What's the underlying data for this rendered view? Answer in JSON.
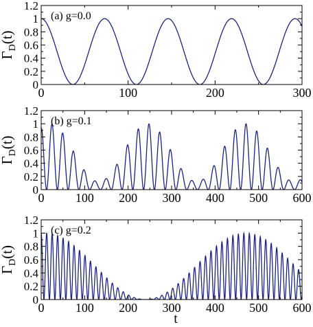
{
  "chart_data": [
    {
      "type": "line",
      "panel_label": "(a) g=0.0",
      "xlabel": "",
      "ylabel": "Γ_D(t)",
      "ylabel_main": "Γ",
      "ylabel_sub": "D",
      "ylabel_tail": "(t)",
      "xlim": [
        0,
        300
      ],
      "ylim": [
        0,
        1.2
      ],
      "x_ticks": [
        0,
        100,
        200,
        300
      ],
      "y_ticks": [
        0,
        0.2,
        0.4,
        0.6,
        0.8,
        1,
        1.2
      ],
      "y_tick_labels": [
        "0",
        "0.2",
        "0.4",
        "0.6",
        "0.8",
        "1",
        "1.2"
      ],
      "series": [
        {
          "color": "#1a237e",
          "formula": "cos^2(pi*t/73)",
          "x": [
            0,
            18,
            36.5,
            55,
            73,
            91,
            109.5,
            128,
            146,
            164,
            182.5,
            201,
            219,
            237,
            255.5,
            274,
            292,
            300
          ],
          "y": [
            1.0,
            0.5,
            0.0,
            0.5,
            1.0,
            0.5,
            0.0,
            0.5,
            1.0,
            0.5,
            0.0,
            0.5,
            1.0,
            0.5,
            0.0,
            0.5,
            1.0,
            0.91
          ]
        }
      ],
      "grid": false
    },
    {
      "type": "line",
      "panel_label": "(b) g=0.1",
      "xlabel": "",
      "ylabel": "Γ_D(t)",
      "ylabel_main": "Γ",
      "ylabel_sub": "D",
      "ylabel_tail": "(t)",
      "xlim": [
        0,
        600
      ],
      "ylim": [
        0,
        1.2
      ],
      "x_ticks": [
        0,
        100,
        200,
        300,
        400,
        500,
        600
      ],
      "y_ticks": [
        0,
        0.2,
        0.4,
        0.6,
        0.8,
        1,
        1.2
      ],
      "y_tick_labels": [
        "0",
        "0.2",
        "0.4",
        "0.6",
        "0.8",
        "1",
        "1.2"
      ],
      "series": [
        {
          "color": "#1a237e",
          "formula": "cos^2(pi*t/24.8) * envelope, envelope = cos^2(pi*(t-20)/225) + 0.12",
          "x": [
            0,
            25,
            50,
            75,
            100,
            125,
            150,
            175,
            200,
            225,
            250,
            275,
            300,
            325,
            350,
            375,
            400,
            425,
            450,
            475,
            500,
            525,
            550,
            575,
            600
          ],
          "y": [
            0.97,
            0.98,
            0.82,
            0.45,
            0.15,
            0.13,
            0.42,
            0.66,
            0.84,
            0.98,
            0.96,
            0.84,
            0.58,
            0.31,
            0.13,
            0.15,
            0.35,
            0.68,
            0.92,
            0.99,
            0.95,
            0.78,
            0.48,
            0.2,
            0.13
          ]
        }
      ],
      "grid": false
    },
    {
      "type": "line",
      "panel_label": "(c) g=0.2",
      "xlabel": "t",
      "ylabel": "Γ_D(t)",
      "ylabel_main": "Γ",
      "ylabel_sub": "D",
      "ylabel_tail": "(t)",
      "xlim": [
        0,
        600
      ],
      "ylim": [
        0,
        1.2
      ],
      "x_ticks": [
        0,
        100,
        200,
        300,
        400,
        500,
        600
      ],
      "y_ticks": [
        0,
        0.2,
        0.4,
        0.6,
        0.8,
        1,
        1.2
      ],
      "y_tick_labels": [
        "0",
        "0.2",
        "0.4",
        "0.6",
        "0.8",
        "1",
        "1.2"
      ],
      "series": [
        {
          "color": "#1a237e",
          "formula": "cos^2(pi*t/12.6) * cos^2(pi*(t-10)/460)",
          "x": [
            0,
            50,
            100,
            150,
            200,
            225,
            250,
            300,
            350,
            400,
            450,
            500,
            550,
            600
          ],
          "y": [
            1.0,
            0.97,
            0.86,
            0.62,
            0.27,
            0.08,
            0.05,
            0.43,
            0.82,
            0.98,
            0.97,
            0.86,
            0.62,
            0.43
          ]
        }
      ],
      "grid": false
    }
  ]
}
